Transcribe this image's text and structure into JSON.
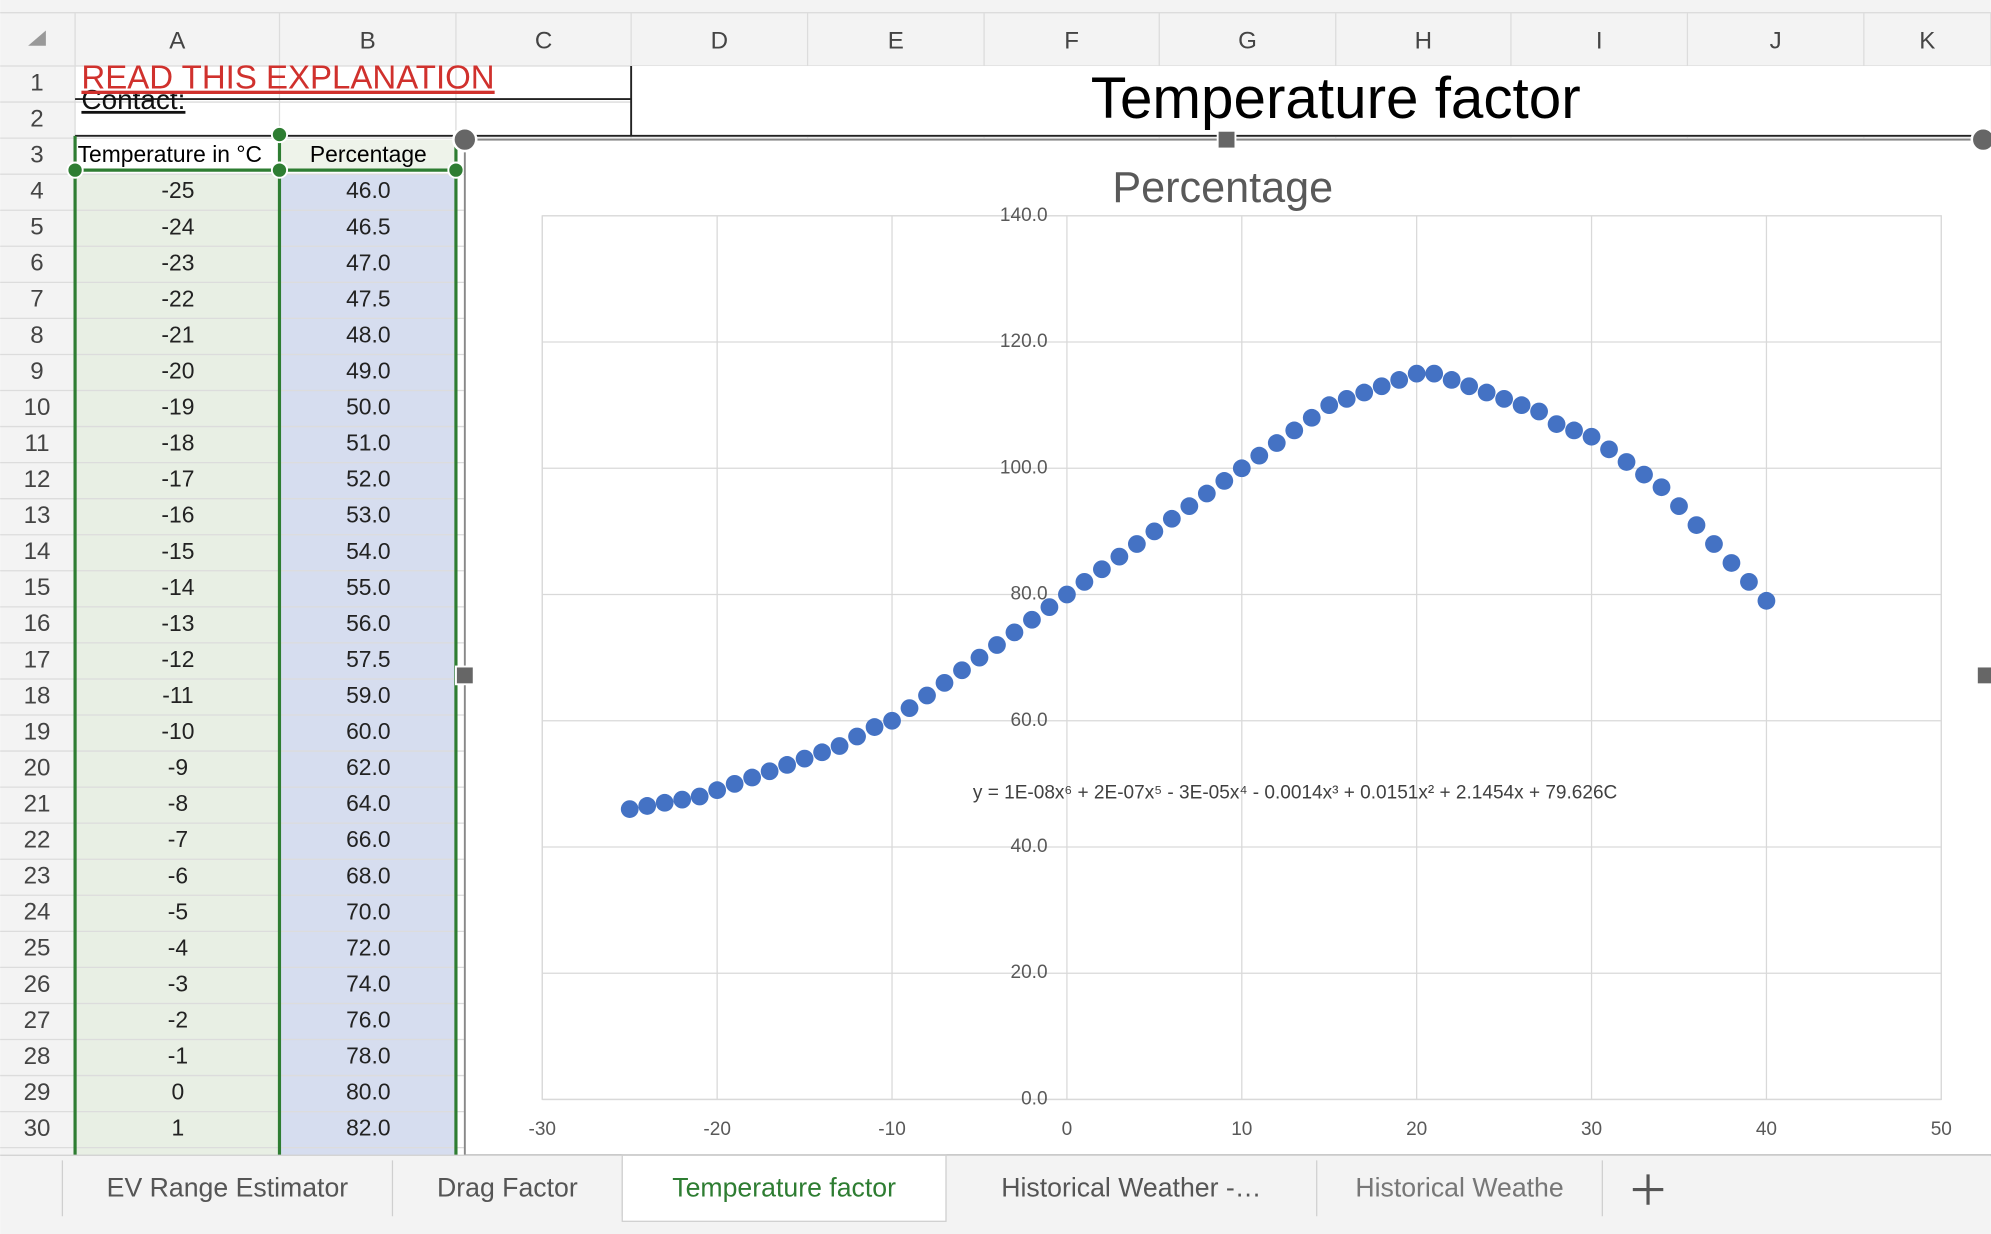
{
  "column_headers": [
    "A",
    "B",
    "C",
    "D",
    "E",
    "F",
    "G",
    "H",
    "I",
    "J",
    "K"
  ],
  "row_headers": [
    "1",
    "2",
    "3",
    "4",
    "5",
    "6",
    "7",
    "8",
    "9",
    "10",
    "11",
    "12",
    "13",
    "14",
    "15",
    "16",
    "17",
    "18",
    "19",
    "20",
    "21",
    "22",
    "23",
    "24",
    "25",
    "26",
    "27",
    "28",
    "29",
    "30"
  ],
  "cells": {
    "A1": "READ THIS EXPLANATION",
    "A2": "Contact:",
    "A3": "Temperature in °C",
    "B3": "Percentage",
    "D1": "Temperature factor"
  },
  "table": {
    "rows": [
      [
        "-25",
        "46.0"
      ],
      [
        "-24",
        "46.5"
      ],
      [
        "-23",
        "47.0"
      ],
      [
        "-22",
        "47.5"
      ],
      [
        "-21",
        "48.0"
      ],
      [
        "-20",
        "49.0"
      ],
      [
        "-19",
        "50.0"
      ],
      [
        "-18",
        "51.0"
      ],
      [
        "-17",
        "52.0"
      ],
      [
        "-16",
        "53.0"
      ],
      [
        "-15",
        "54.0"
      ],
      [
        "-14",
        "55.0"
      ],
      [
        "-13",
        "56.0"
      ],
      [
        "-12",
        "57.5"
      ],
      [
        "-11",
        "59.0"
      ],
      [
        "-10",
        "60.0"
      ],
      [
        "-9",
        "62.0"
      ],
      [
        "-8",
        "64.0"
      ],
      [
        "-7",
        "66.0"
      ],
      [
        "-6",
        "68.0"
      ],
      [
        "-5",
        "70.0"
      ],
      [
        "-4",
        "72.0"
      ],
      [
        "-3",
        "74.0"
      ],
      [
        "-2",
        "76.0"
      ],
      [
        "-1",
        "78.0"
      ],
      [
        "0",
        "80.0"
      ],
      [
        "1",
        "82.0"
      ]
    ]
  },
  "chart_data": {
    "type": "scatter",
    "title": "Percentage",
    "color": "#4472c4",
    "grid": true,
    "x": [
      -25,
      -24,
      -23,
      -22,
      -21,
      -20,
      -19,
      -18,
      -17,
      -16,
      -15,
      -14,
      -13,
      -12,
      -11,
      -10,
      -9,
      -8,
      -7,
      -6,
      -5,
      -4,
      -3,
      -2,
      -1,
      0,
      1,
      2,
      3,
      4,
      5,
      6,
      7,
      8,
      9,
      10,
      11,
      12,
      13,
      14,
      15,
      16,
      17,
      18,
      19,
      20,
      21,
      22,
      23,
      24,
      25,
      26,
      27,
      28,
      29,
      30,
      31,
      32,
      33,
      34,
      35,
      36,
      37,
      38,
      39,
      40
    ],
    "values": [
      46,
      46.5,
      47,
      47.5,
      48,
      49,
      50,
      51,
      52,
      53,
      54,
      55,
      56,
      57.5,
      59,
      60,
      62,
      64,
      66,
      68,
      70,
      72,
      74,
      76,
      78,
      80,
      82,
      84,
      86,
      88,
      90,
      92,
      94,
      96,
      98,
      100,
      102,
      104,
      106,
      108,
      110,
      111,
      112,
      113,
      114,
      115,
      115,
      114,
      113,
      112,
      111,
      110,
      109,
      107,
      106,
      105,
      103,
      101,
      99,
      97,
      94,
      91,
      88,
      85,
      82,
      79
    ],
    "xlim": [
      -30,
      50
    ],
    "xticks": [
      -30,
      -20,
      -10,
      0,
      10,
      20,
      30,
      40,
      50
    ],
    "ylim": [
      0,
      140
    ],
    "yticks": [
      {
        "value": 0,
        "label": "0.0"
      },
      {
        "value": 20,
        "label": "20.0"
      },
      {
        "value": 40,
        "label": "40.0"
      },
      {
        "value": 60,
        "label": "60.0"
      },
      {
        "value": 80,
        "label": "80.0"
      },
      {
        "value": 100,
        "label": "100.0"
      },
      {
        "value": 120,
        "label": "120.0"
      },
      {
        "value": 140,
        "label": "140.0"
      }
    ],
    "annotation": "y = 1E-08x⁶ + 2E-07x⁵ - 3E-05x⁴ - 0.0014x³ + 0.0151x² + 2.1454x + 79.626C"
  },
  "sheet_tabs": [
    "EV Range Estimator",
    "Drag Factor",
    "Temperature factor",
    "Historical Weather -…",
    "Historical Weathe"
  ]
}
